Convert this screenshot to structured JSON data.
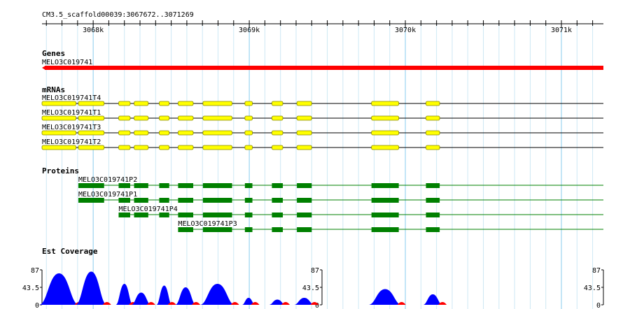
{
  "coordinates": "CM3.5_scaffold00039:3067672..3071269",
  "ruler": {
    "start_bp": 3067672,
    "end_bp": 3071269,
    "ticks": [
      {
        "pos": 3068000,
        "label": "3068k"
      },
      {
        "pos": 3069000,
        "label": "3069k"
      },
      {
        "pos": 3070000,
        "label": "3070k"
      },
      {
        "pos": 3071000,
        "label": "3071k"
      }
    ]
  },
  "colors": {
    "gene": "#ff0000",
    "mrna_exon": "#ffff00",
    "mrna_exon_border": "#888800",
    "protein": "#008000",
    "coverage_plus": "#0000ff",
    "coverage_minus": "#ff0000",
    "grid_major": "#88ccee",
    "grid_minor": "#cde8f4"
  },
  "tracks": {
    "genes": {
      "label": "Genes",
      "features": [
        {
          "name": "MELO3C019741",
          "strand": "-",
          "start": 3067672,
          "end": 3071269
        }
      ]
    },
    "mrnas": {
      "label": "mRNAs",
      "features": [
        {
          "name": "MELO3C019741T4",
          "exons": [
            [
              3067672,
              3067890
            ],
            [
              3067905,
              3068070
            ],
            [
              3068163,
              3068237
            ],
            [
              3068262,
              3068353
            ],
            [
              3068423,
              3068487
            ],
            [
              3068544,
              3068641
            ],
            [
              3068703,
              3068890
            ],
            [
              3068972,
              3069020
            ],
            [
              3069145,
              3069215
            ],
            [
              3069305,
              3069400
            ],
            [
              3069783,
              3069958
            ],
            [
              3070132,
              3070220
            ]
          ]
        },
        {
          "name": "MELO3C019741T1",
          "exons": [
            [
              3067672,
              3067890
            ],
            [
              3067905,
              3068070
            ],
            [
              3068163,
              3068237
            ],
            [
              3068262,
              3068353
            ],
            [
              3068423,
              3068487
            ],
            [
              3068544,
              3068641
            ],
            [
              3068703,
              3068890
            ],
            [
              3068972,
              3069020
            ],
            [
              3069145,
              3069215
            ],
            [
              3069305,
              3069400
            ],
            [
              3069783,
              3069958
            ],
            [
              3070132,
              3070220
            ]
          ]
        },
        {
          "name": "MELO3C019741T3",
          "exons": [
            [
              3067672,
              3067890
            ],
            [
              3067905,
              3068070
            ],
            [
              3068163,
              3068237
            ],
            [
              3068262,
              3068353
            ],
            [
              3068423,
              3068487
            ],
            [
              3068544,
              3068641
            ],
            [
              3068703,
              3068890
            ],
            [
              3068972,
              3069020
            ],
            [
              3069145,
              3069215
            ],
            [
              3069305,
              3069400
            ],
            [
              3069783,
              3069958
            ],
            [
              3070132,
              3070220
            ]
          ]
        },
        {
          "name": "MELO3C019741T2",
          "exons": [
            [
              3067672,
              3067890
            ],
            [
              3067905,
              3068070
            ],
            [
              3068163,
              3068237
            ],
            [
              3068262,
              3068353
            ],
            [
              3068423,
              3068487
            ],
            [
              3068544,
              3068641
            ],
            [
              3068703,
              3068890
            ],
            [
              3068972,
              3069020
            ],
            [
              3069145,
              3069215
            ],
            [
              3069305,
              3069400
            ],
            [
              3069783,
              3069958
            ],
            [
              3070132,
              3070220
            ]
          ]
        }
      ]
    },
    "proteins": {
      "label": "Proteins",
      "features": [
        {
          "name": "MELO3C019741P2",
          "exons": [
            [
              3067905,
              3068070
            ],
            [
              3068163,
              3068237
            ],
            [
              3068262,
              3068353
            ],
            [
              3068423,
              3068487
            ],
            [
              3068544,
              3068641
            ],
            [
              3068703,
              3068890
            ],
            [
              3068972,
              3069020
            ],
            [
              3069145,
              3069215
            ],
            [
              3069305,
              3069400
            ],
            [
              3069783,
              3069958
            ],
            [
              3070132,
              3070220
            ]
          ]
        },
        {
          "name": "MELO3C019741P1",
          "exons": [
            [
              3067905,
              3068070
            ],
            [
              3068163,
              3068237
            ],
            [
              3068262,
              3068353
            ],
            [
              3068423,
              3068487
            ],
            [
              3068544,
              3068641
            ],
            [
              3068703,
              3068890
            ],
            [
              3068972,
              3069020
            ],
            [
              3069145,
              3069215
            ],
            [
              3069305,
              3069400
            ],
            [
              3069783,
              3069958
            ],
            [
              3070132,
              3070220
            ]
          ]
        },
        {
          "name": "MELO3C019741P4",
          "exons": [
            [
              3068163,
              3068237
            ],
            [
              3068262,
              3068353
            ],
            [
              3068423,
              3068487
            ],
            [
              3068544,
              3068641
            ],
            [
              3068703,
              3068890
            ],
            [
              3068972,
              3069020
            ],
            [
              3069145,
              3069215
            ],
            [
              3069305,
              3069400
            ],
            [
              3069783,
              3069958
            ],
            [
              3070132,
              3070220
            ]
          ]
        },
        {
          "name": "MELO3C019741P3",
          "exons": [
            [
              3068544,
              3068641
            ],
            [
              3068703,
              3068890
            ],
            [
              3068972,
              3069020
            ],
            [
              3069145,
              3069215
            ],
            [
              3069305,
              3069400
            ],
            [
              3069783,
              3069958
            ],
            [
              3070132,
              3070220
            ]
          ]
        }
      ]
    },
    "coverage": {
      "label": "Est Coverage",
      "max": 87,
      "mid": 43.5,
      "min": 0,
      "axis_labels": [
        "87",
        "43.5",
        "0"
      ]
    }
  }
}
